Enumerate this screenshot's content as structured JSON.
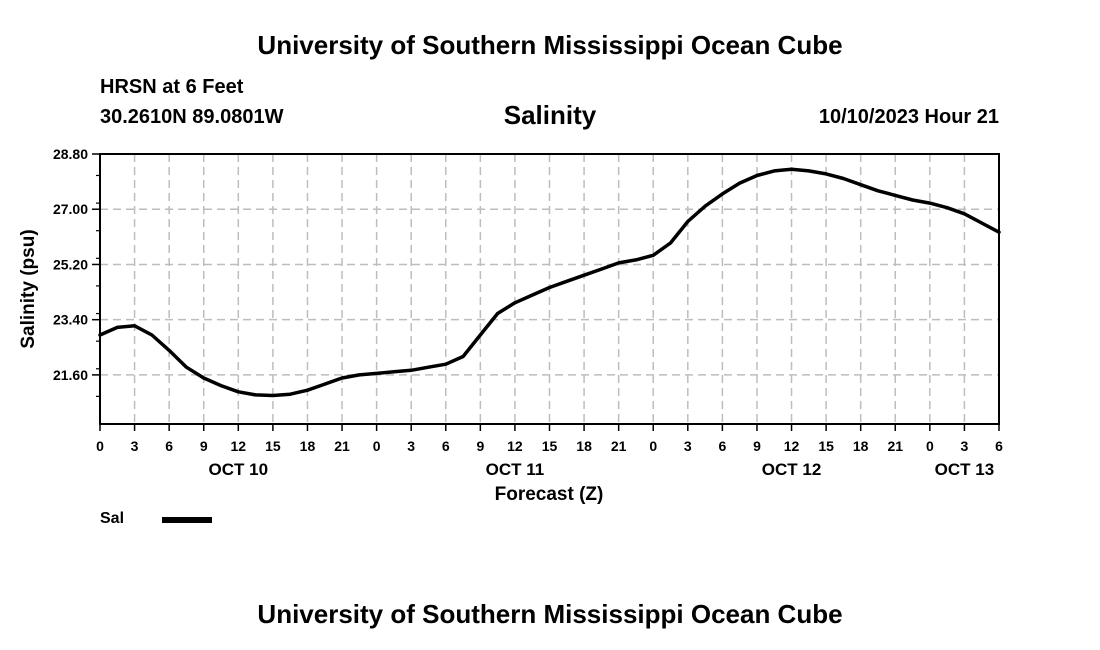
{
  "header": {
    "title": "University of Southern Mississippi Ocean Cube",
    "station": "HRSN at 6 Feet",
    "coordinates": "30.2610N  89.0801W",
    "variable": "Salinity",
    "datetime": "10/10/2023 Hour 21"
  },
  "footer": {
    "title": "University of Southern Mississippi Ocean Cube"
  },
  "legend": {
    "label": "Sal",
    "color": "#000000"
  },
  "chart_data": {
    "type": "line",
    "title": "Salinity",
    "xlabel": "Forecast (Z)",
    "ylabel": "Salinity (psu)",
    "xlim": [
      0,
      78
    ],
    "ylim": [
      20.0,
      28.8
    ],
    "grid": true,
    "legend_position": "bottom-left",
    "y_ticks": [
      "21.60",
      "23.40",
      "25.20",
      "27.00",
      "28.80"
    ],
    "x_tick_hours": [
      0,
      3,
      6,
      9,
      12,
      15,
      18,
      21,
      24,
      27,
      30,
      33,
      36,
      39,
      42,
      45,
      48,
      51,
      54,
      57,
      60,
      63,
      66,
      69,
      72,
      75,
      78
    ],
    "x_tick_labels": [
      "0",
      "3",
      "6",
      "9",
      "12",
      "15",
      "18",
      "21",
      "0",
      "3",
      "6",
      "9",
      "12",
      "15",
      "18",
      "21",
      "0",
      "3",
      "6",
      "9",
      "12",
      "15",
      "18",
      "21",
      "0",
      "3",
      "6"
    ],
    "date_labels": [
      {
        "hour": 12,
        "label": "OCT 10"
      },
      {
        "hour": 36,
        "label": "OCT 11"
      },
      {
        "hour": 60,
        "label": "OCT 12"
      },
      {
        "hour": 75,
        "label": "OCT 13"
      }
    ],
    "series": [
      {
        "name": "Sal",
        "x": [
          0,
          1.5,
          3,
          4.5,
          6,
          7.5,
          9,
          10.5,
          12,
          13.5,
          15,
          16.5,
          18,
          19.5,
          21,
          22.5,
          24,
          25.5,
          27,
          28.5,
          30,
          31.5,
          33,
          34.5,
          36,
          37.5,
          39,
          40.5,
          42,
          43.5,
          45,
          46.5,
          48,
          49.5,
          51,
          52.5,
          54,
          55.5,
          57,
          58.5,
          60,
          61.5,
          63,
          64.5,
          66,
          67.5,
          69,
          70.5,
          72,
          73.5,
          75,
          76.5,
          78
        ],
        "values": [
          22.9,
          23.15,
          23.2,
          22.9,
          22.4,
          21.85,
          21.5,
          21.25,
          21.05,
          20.95,
          20.93,
          20.97,
          21.1,
          21.3,
          21.5,
          21.6,
          21.65,
          21.7,
          21.75,
          21.85,
          21.95,
          22.2,
          22.9,
          23.6,
          23.95,
          24.2,
          24.45,
          24.65,
          24.85,
          25.05,
          25.25,
          25.35,
          25.5,
          25.9,
          26.6,
          27.1,
          27.5,
          27.85,
          28.1,
          28.25,
          28.3,
          28.25,
          28.15,
          28.0,
          27.8,
          27.6,
          27.45,
          27.3,
          27.2,
          27.05,
          26.85,
          26.55,
          26.25
        ]
      }
    ]
  }
}
